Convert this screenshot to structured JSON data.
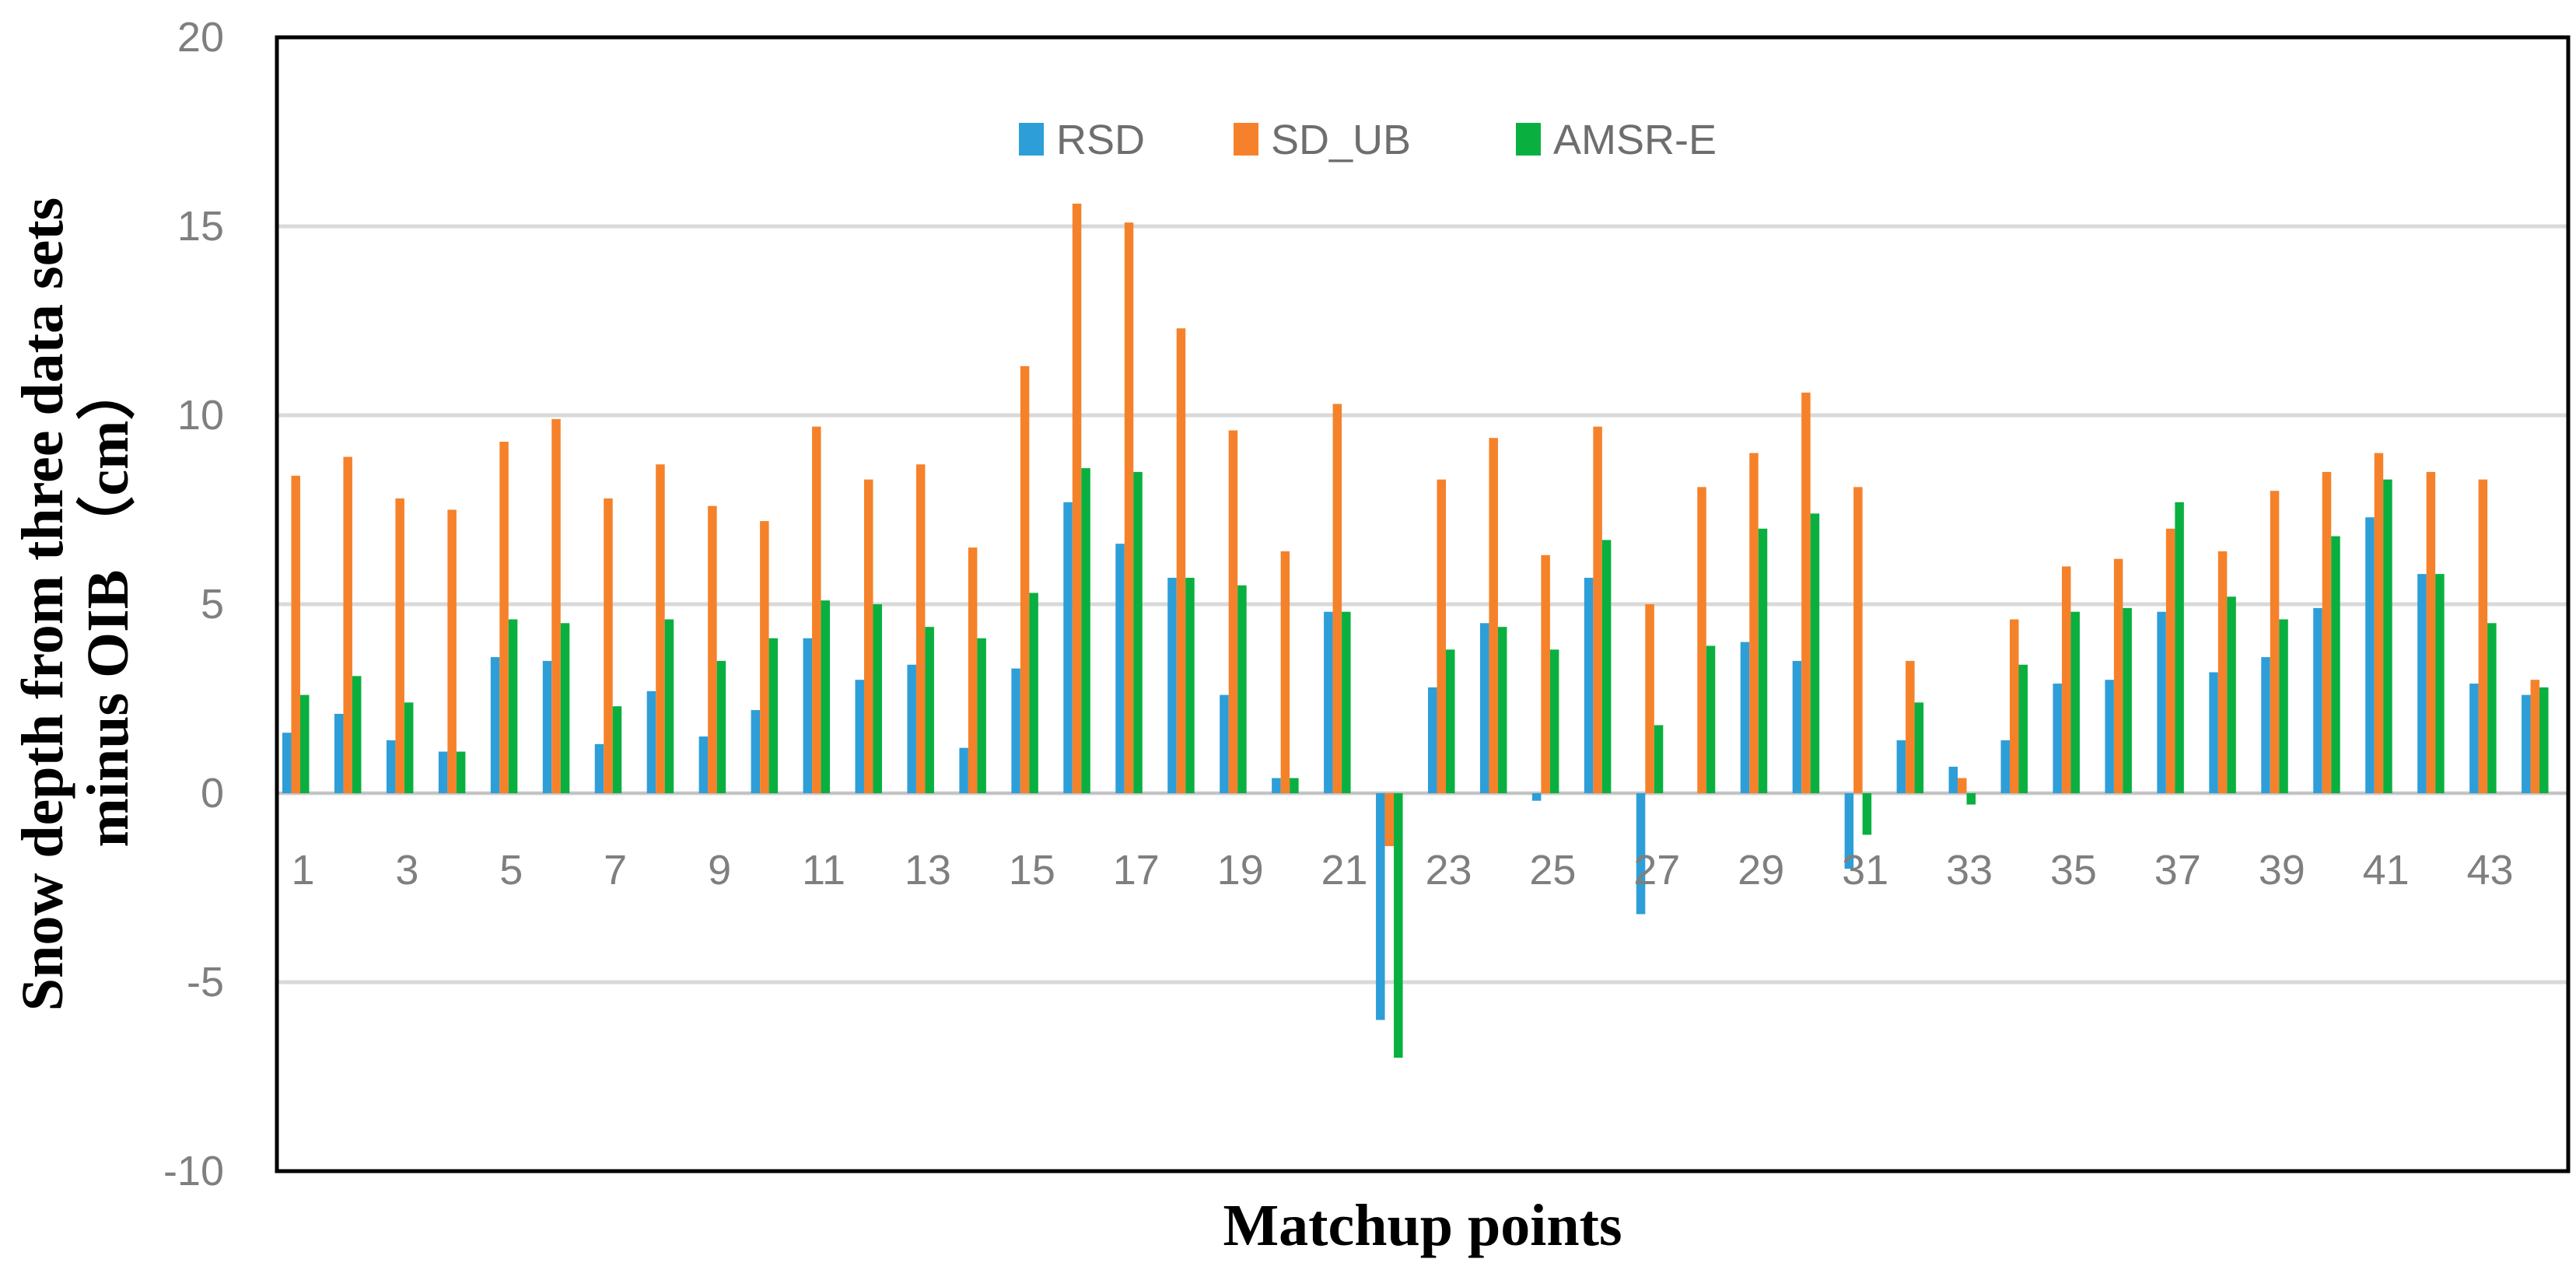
{
  "chart_data": {
    "type": "bar",
    "xlabel": "Matchup points",
    "ylabel_line1": "Snow depth from three data sets",
    "ylabel_line2": "minus OIB （cm）",
    "ylim": [
      -10,
      20
    ],
    "yticks": [
      -10,
      -5,
      0,
      5,
      10,
      15,
      20
    ],
    "legend_position": "top-center",
    "grid": true,
    "categories": [
      "1",
      "2",
      "3",
      "4",
      "5",
      "6",
      "7",
      "8",
      "9",
      "10",
      "11",
      "12",
      "13",
      "14",
      "15",
      "16",
      "17",
      "18",
      "19",
      "20",
      "21",
      "22",
      "23",
      "24",
      "25",
      "26",
      "27",
      "28",
      "29",
      "30",
      "31",
      "32",
      "33",
      "34",
      "35",
      "36",
      "37",
      "38",
      "39",
      "40",
      "41",
      "42",
      "43",
      "44"
    ],
    "xtick_labels": [
      "1",
      "3",
      "5",
      "7",
      "9",
      "11",
      "13",
      "15",
      "17",
      "19",
      "21",
      "23",
      "25",
      "27",
      "29",
      "31",
      "33",
      "35",
      "37",
      "39",
      "41",
      "43"
    ],
    "series": [
      {
        "name": "RSD",
        "color": "#2e9ed8",
        "values": [
          1.6,
          2.1,
          1.4,
          1.1,
          3.6,
          3.5,
          1.3,
          2.7,
          1.5,
          2.2,
          4.1,
          3.0,
          3.4,
          1.2,
          3.3,
          7.7,
          6.6,
          5.7,
          2.6,
          0.4,
          4.8,
          -6.0,
          2.8,
          4.5,
          -0.2,
          5.7,
          -3.2,
          0.0,
          4.0,
          3.5,
          -2.0,
          1.4,
          0.7,
          1.4,
          2.9,
          3.0,
          4.8,
          3.2,
          3.6,
          4.9,
          7.3,
          5.8,
          2.9,
          2.6
        ]
      },
      {
        "name": "SD_UB",
        "color": "#f5822a",
        "values": [
          8.4,
          8.9,
          7.8,
          7.5,
          9.3,
          9.9,
          7.8,
          8.7,
          7.6,
          7.2,
          9.7,
          8.3,
          8.7,
          6.5,
          11.3,
          15.6,
          15.1,
          12.3,
          9.6,
          6.4,
          10.3,
          -1.4,
          8.3,
          9.4,
          6.3,
          9.7,
          5.0,
          8.1,
          9.0,
          10.6,
          8.1,
          3.5,
          0.4,
          4.6,
          6.0,
          6.2,
          7.0,
          6.4,
          8.0,
          8.5,
          9.0,
          8.5,
          8.3,
          3.0
        ]
      },
      {
        "name": "AMSR-E",
        "color": "#09b040",
        "values": [
          2.6,
          3.1,
          2.4,
          1.1,
          4.6,
          4.5,
          2.3,
          4.6,
          3.5,
          4.1,
          5.1,
          5.0,
          4.4,
          4.1,
          5.3,
          8.6,
          8.5,
          5.7,
          5.5,
          0.4,
          4.8,
          -7.0,
          3.8,
          4.4,
          3.8,
          6.7,
          1.8,
          3.9,
          7.0,
          7.4,
          -1.1,
          2.4,
          -0.3,
          3.4,
          4.8,
          4.9,
          7.7,
          5.2,
          4.6,
          6.8,
          8.3,
          5.8,
          4.5,
          2.8
        ]
      }
    ]
  }
}
